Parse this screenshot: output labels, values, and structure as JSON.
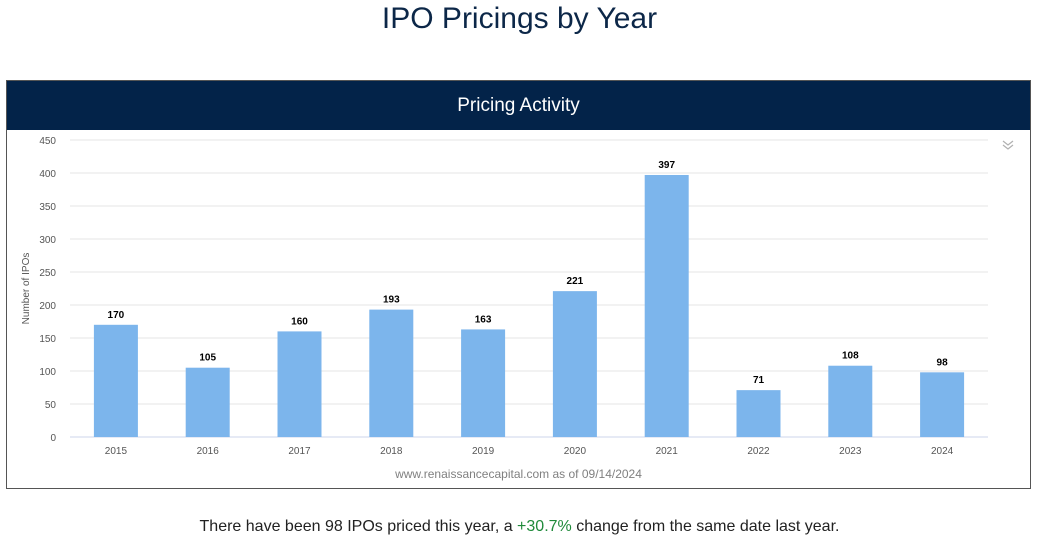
{
  "page_title": "IPO Pricings by Year",
  "panel": {
    "header": "Pricing Activity",
    "source_note": "www.renaissancecapital.com as of 09/14/2024",
    "menu_icon": "chevron-double-down-icon"
  },
  "chart_data": {
    "type": "bar",
    "title": "Pricing Activity",
    "ylabel": "Number of IPOs",
    "xlabel": "",
    "categories": [
      "2015",
      "2016",
      "2017",
      "2018",
      "2019",
      "2020",
      "2021",
      "2022",
      "2023",
      "2024"
    ],
    "values": [
      170,
      105,
      160,
      193,
      163,
      221,
      397,
      71,
      108,
      98
    ],
    "ylim": [
      0,
      450
    ],
    "yticks": [
      0,
      50,
      100,
      150,
      200,
      250,
      300,
      350,
      400,
      450
    ],
    "grid": true,
    "bar_color": "#7cb5ec",
    "data_labels": true
  },
  "footer": {
    "prefix": "There have been 98 IPOs priced this year, a ",
    "change": "+30.7%",
    "suffix": " change from the same date last year."
  },
  "colors": {
    "header_bg": "#032349",
    "title_text": "#0c2748",
    "positive": "#1f8a3a"
  }
}
